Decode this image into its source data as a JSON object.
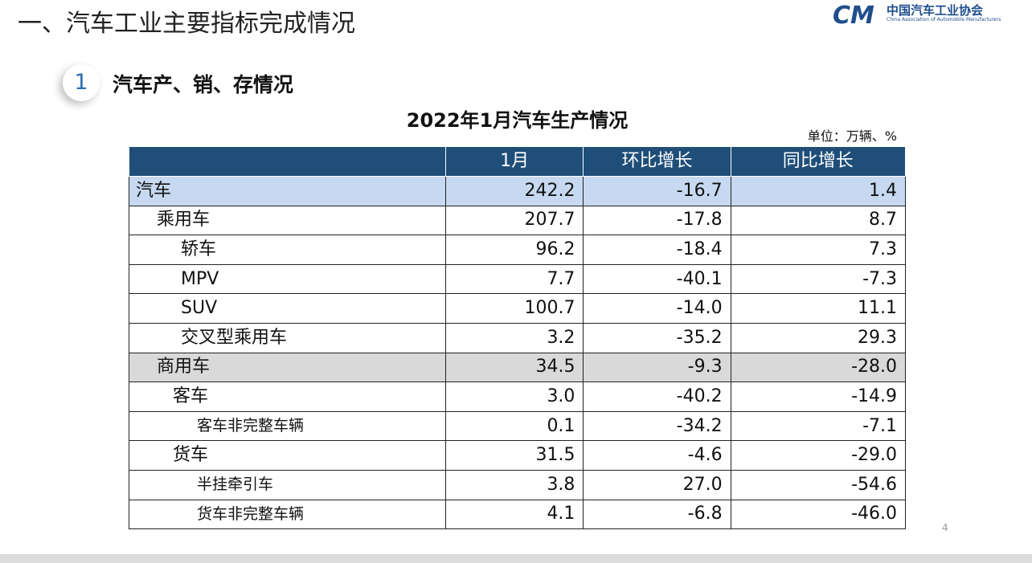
{
  "header": {
    "title": "一、汽车工业主要指标完成情况",
    "logo_name": "中国汽车工业协会",
    "logo_subtitle": "China Association of Automobile Manufacturers"
  },
  "section": {
    "number": "1",
    "title": "汽车产、销、存情况"
  },
  "table": {
    "title": "2022年1月汽车生产情况",
    "unit": "单位：万辆、%",
    "columns": [
      "",
      "1月",
      "环比增长",
      "同比增长"
    ],
    "rows": [
      [
        "汽车",
        "242.2",
        "-16.7",
        "1.4"
      ],
      [
        "乘用车",
        "207.7",
        "-17.8",
        "8.7"
      ],
      [
        "轿车",
        "96.2",
        "-18.4",
        "7.3"
      ],
      [
        "MPV",
        "7.7",
        "-40.1",
        "-7.3"
      ],
      [
        "SUV",
        "100.7",
        "-14.0",
        "11.1"
      ],
      [
        "交叉型乘用车",
        "3.2",
        "-35.2",
        "29.3"
      ],
      [
        "商用车",
        "34.5",
        "-9.3",
        "-28.0"
      ],
      [
        "客车",
        "3.0",
        "-40.2",
        "-14.9"
      ],
      [
        "客车非完整车辆",
        "0.1",
        "-34.2",
        "-7.1"
      ],
      [
        "货车",
        "31.5",
        "-4.6",
        "-29.0"
      ],
      [
        "半挂牵引车",
        "3.8",
        "27.0",
        "-54.6"
      ],
      [
        "货车非完整车辆",
        "4.1",
        "-6.8",
        "-46.0"
      ]
    ]
  },
  "page_number": "4"
}
